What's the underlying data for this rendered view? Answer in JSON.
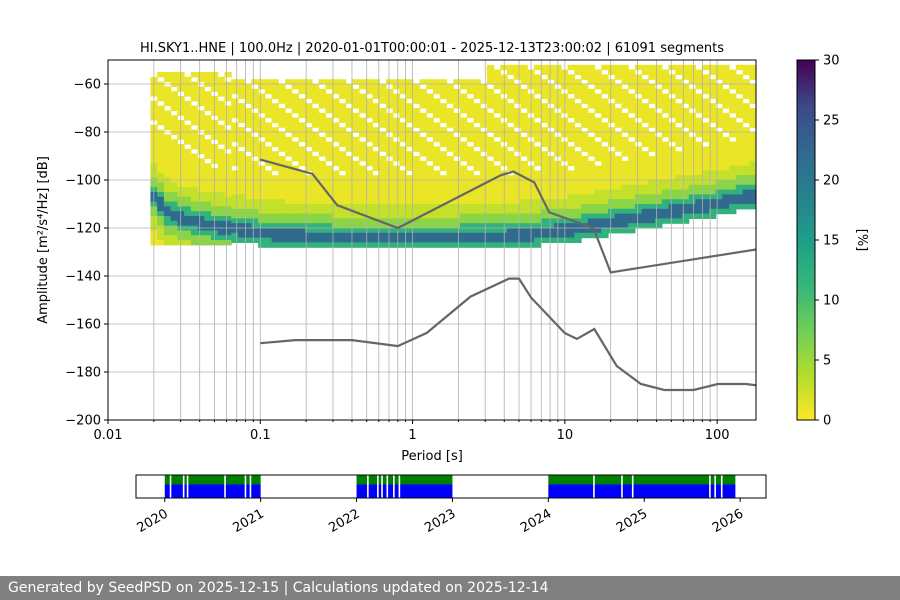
{
  "chart_data": [
    {
      "type": "heatmap",
      "title": "HI.SKY1..HNE | 100.0Hz | 2020-01-01T00:00:01 - 2025-12-13T23:00:02 | 61091 segments",
      "xlabel": "Period [s]",
      "ylabel": "Amplitude [m²/s⁴/Hz] [dB]",
      "xscale": "log",
      "xlim": [
        0.01,
        180
      ],
      "ylim": [
        -200,
        -50
      ],
      "x_ticks": [
        0.01,
        0.1,
        1,
        10,
        100
      ],
      "x_tick_labels": [
        "0.01",
        "0.1",
        "1",
        "10",
        "100"
      ],
      "y_ticks": [
        -200,
        -180,
        -160,
        -140,
        -120,
        -100,
        -80,
        -60
      ],
      "y_tick_labels": [
        "−200",
        "−180",
        "−160",
        "−140",
        "−120",
        "−100",
        "−80",
        "−60"
      ],
      "grid": true,
      "colormap": "viridis_r",
      "colorbar": {
        "label": "[%]",
        "range": [
          0,
          30
        ],
        "ticks": [
          0,
          5,
          10,
          15,
          20,
          25,
          30
        ]
      },
      "probability_mode_curve": {
        "period": [
          0.02,
          0.025,
          0.03,
          0.04,
          0.06,
          0.1,
          0.15,
          0.2,
          0.3,
          0.5,
          1,
          2,
          4,
          6,
          10,
          15
        ],
        "db": [
          -106,
          -113,
          -115,
          -117,
          -119,
          -121,
          -122,
          -122.5,
          -123,
          -123,
          -123,
          -123,
          -122.5,
          -121.5,
          -120,
          -118
        ]
      },
      "noise_models": [
        {
          "name": "NHNM",
          "period": [
            0.1,
            0.22,
            0.32,
            0.8,
            3.8,
            4.6,
            6.3,
            7.9,
            15.4,
            20,
            354.8
          ],
          "db": [
            -91.5,
            -97.4,
            -110.5,
            -120,
            -98,
            -96.5,
            -101,
            -113.5,
            -120,
            -138.5,
            -126
          ]
        },
        {
          "name": "NLNM",
          "period": [
            0.1,
            0.17,
            0.4,
            0.8,
            1.24,
            2.4,
            4.3,
            5,
            6,
            10,
            12,
            15.6,
            21.9,
            31.6,
            45,
            70,
            101,
            154,
            328
          ],
          "db": [
            -168,
            -166.7,
            -166.7,
            -169.2,
            -163.7,
            -148.6,
            -141.1,
            -141.1,
            -149,
            -163.8,
            -166.2,
            -162.1,
            -177.5,
            -185,
            -187.5,
            -187.5,
            -185,
            -185,
            -187.5
          ]
        }
      ]
    },
    {
      "type": "timeline",
      "x_tick_labels": [
        "2020",
        "2021",
        "2022",
        "2023",
        "2024",
        "2025",
        "2026"
      ],
      "bar_colors": {
        "upper": "#008000",
        "lower": "#0000ff"
      },
      "data_periods": [
        {
          "start": "2020-01-01",
          "end": "2020-12-31"
        },
        {
          "start": "2022-01-01",
          "end": "2022-12-31"
        },
        {
          "start": "2024-01-01",
          "end": "2025-12-13"
        }
      ],
      "gaps": [
        "2020-01-20",
        "2020-03-10",
        "2020-03-25",
        "2020-08-15",
        "2020-11-01",
        "2020-11-20",
        "2022-02-10",
        "2022-03-20",
        "2022-04-05",
        "2022-04-25",
        "2022-05-20",
        "2022-06-10",
        "2024-06-20",
        "2024-10-05",
        "2024-11-15",
        "2025-09-05",
        "2025-09-25",
        "2025-10-20"
      ]
    }
  ],
  "footer": {
    "text": "Generated by SeedPSD on 2025-12-15 | Calculations updated on 2025-12-14"
  }
}
